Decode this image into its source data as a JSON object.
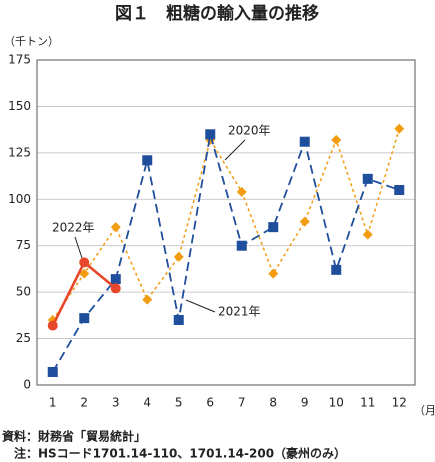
{
  "chart_data": {
    "type": "line",
    "title": "図１　粗糖の輸入量の推移",
    "y_label": "（千トン）",
    "x_label": "（月）",
    "source": "資料：財務省「貿易統計」",
    "note": "注：HSコード1701.14-110、1701.14-200（豪州のみ）",
    "categories": [
      "1",
      "2",
      "3",
      "4",
      "5",
      "6",
      "7",
      "8",
      "9",
      "10",
      "11",
      "12"
    ],
    "series": [
      {
        "name": "2020年",
        "color": "#f39c12",
        "values": [
          35,
          60,
          85,
          46,
          69,
          132,
          104,
          60,
          88,
          132,
          81,
          138
        ]
      },
      {
        "name": "2021年",
        "color": "#1f4e9c",
        "values": [
          7,
          36,
          57,
          121,
          35,
          135,
          75,
          85,
          131,
          62,
          111,
          105
        ]
      },
      {
        "name": "2022年",
        "color": "#e8462a",
        "values": [
          32,
          66,
          52,
          null,
          null,
          null,
          null,
          null,
          null,
          null,
          null,
          null
        ]
      }
    ],
    "ylim": [
      0,
      175
    ],
    "yticks": [
      0,
      25,
      50,
      75,
      100,
      125,
      150,
      175
    ],
    "grid": true
  }
}
